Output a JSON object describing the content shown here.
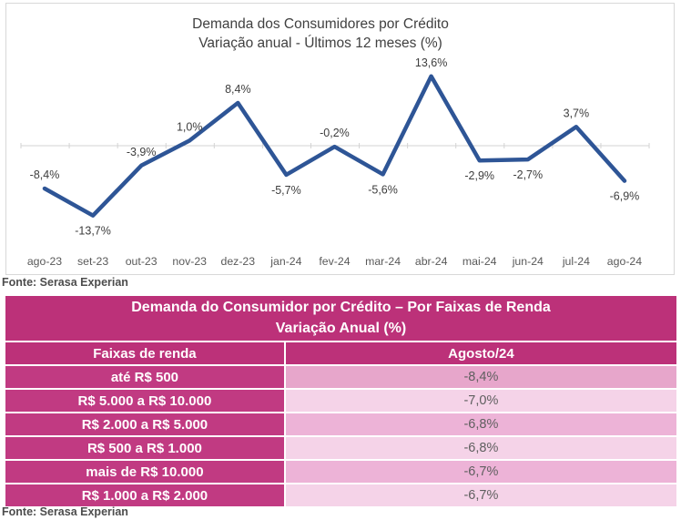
{
  "sources": {
    "chart": "Fonte: Serasa Experian",
    "table": "Fonte: Serasa Experian"
  },
  "theme": {
    "line-color": "#2E5596",
    "magenta": "#BC3179",
    "magenta-cell": "#C13A82",
    "axis_color": "#D3D3D3",
    "value_cell_shades": [
      "#E7A6CB",
      "#F5D3E8",
      "#EDB3D7",
      "#F5D3E8",
      "#EDB3D7",
      "#F5D3E8"
    ]
  },
  "chart_data": [
    {
      "type": "line",
      "title": "Demanda dos Consumidores por Crédito",
      "subtitle": "Variação anual - Últimos 12 meses (%)",
      "categories": [
        "ago-23",
        "set-23",
        "out-23",
        "nov-23",
        "dez-23",
        "jan-24",
        "fev-24",
        "mar-24",
        "abr-24",
        "mai-24",
        "jun-24",
        "jul-24",
        "ago-24"
      ],
      "values": [
        -8.4,
        -13.7,
        -3.9,
        1.0,
        8.4,
        -5.7,
        -0.2,
        -5.6,
        13.6,
        -2.9,
        -2.7,
        3.7,
        -6.9
      ],
      "point_labels": [
        "-8,4%",
        "-13,7%",
        "-3,9%",
        "1,0%",
        "8,4%",
        "-5,7%",
        "-0,2%",
        "-5,6%",
        "13,6%",
        "-2,9%",
        "-2,7%",
        "3,7%",
        "-6,9%"
      ],
      "label_positions": [
        "above",
        "below",
        "above",
        "above",
        "above",
        "below",
        "above",
        "below",
        "above",
        "below",
        "below",
        "above",
        "below"
      ],
      "ylim": [
        -16,
        16
      ],
      "line_color": "#2E5596",
      "legend": "none",
      "grid": "zero-axis-only"
    },
    {
      "type": "table",
      "title": "Demanda do Consumidor por Crédito – Por Faixas de Renda",
      "subtitle": "Variação Anual (%)",
      "columns": [
        "Faixas de renda",
        "Agosto/24"
      ],
      "rows": [
        [
          "até R$ 500",
          "-8,4%"
        ],
        [
          "R$ 5.000 a R$ 10.000",
          "-7,0%"
        ],
        [
          "R$ 2.000 a R$ 5.000",
          "-6,8%"
        ],
        [
          "R$ 500 a R$ 1.000",
          "-6,8%"
        ],
        [
          "mais de R$ 10.000",
          "-6,7%"
        ],
        [
          "R$ 1.000 a R$ 2.000",
          "-6,7%"
        ]
      ]
    }
  ]
}
